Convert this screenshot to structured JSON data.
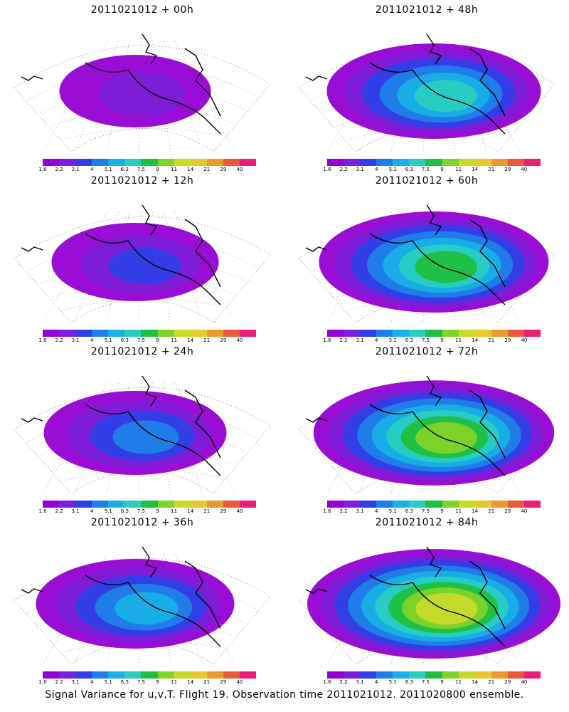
{
  "caption": "Signal Variance for u,v,T. Flight 19. Observation time 2011021012. 2011020800 ensemble.",
  "colorbar": {
    "tick_labels": [
      "1.6",
      "2.2",
      "3.1",
      "4",
      "5.1",
      "6.3",
      "7.5",
      "9",
      "11",
      "14",
      "21",
      "29",
      "40"
    ],
    "colors": [
      "#9400d3",
      "#7b1fd8",
      "#2f3fe6",
      "#1f7fe8",
      "#19b0e8",
      "#28cfc0",
      "#1fbf3f",
      "#7fd32a",
      "#c8da2a",
      "#e8c830",
      "#ea9a30",
      "#e85a3a",
      "#e91e78"
    ]
  },
  "panels": [
    {
      "title": "2011021012 + 00h",
      "level": 0.15
    },
    {
      "title": "2011021012 + 48h",
      "level": 0.55
    },
    {
      "title": "2011021012 + 12h",
      "level": 0.25
    },
    {
      "title": "2011021012 + 60h",
      "level": 0.65
    },
    {
      "title": "2011021012 + 24h",
      "level": 0.35
    },
    {
      "title": "2011021012 + 72h",
      "level": 0.72
    },
    {
      "title": "2011021012 + 36h",
      "level": 0.45
    },
    {
      "title": "2011021012 + 84h",
      "level": 0.8
    }
  ]
}
